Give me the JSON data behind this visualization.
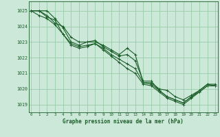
{
  "background_color": "#cce8d8",
  "plot_bg_color": "#cce8d8",
  "grid_color": "#99ccaa",
  "line_color": "#1a5c28",
  "marker_color": "#1a5c28",
  "xlabel": "Graphe pression niveau de la mer (hPa)",
  "ylim": [
    1018.5,
    1025.6
  ],
  "xlim": [
    -0.3,
    23.3
  ],
  "yticks": [
    1019,
    1020,
    1021,
    1022,
    1023,
    1024,
    1025
  ],
  "xticks": [
    0,
    1,
    2,
    3,
    4,
    5,
    6,
    7,
    8,
    9,
    10,
    11,
    12,
    13,
    14,
    15,
    16,
    17,
    18,
    19,
    20,
    21,
    22,
    23
  ],
  "series": [
    [
      1025.0,
      1025.0,
      1025.0,
      1024.5,
      1023.9,
      1023.0,
      1022.8,
      1023.0,
      1023.0,
      1022.8,
      1022.5,
      1022.2,
      1022.6,
      1022.2,
      1020.4,
      1020.4,
      1020.0,
      1019.9,
      1019.5,
      1019.3,
      1019.6,
      1019.9,
      1020.3,
      1020.3
    ],
    [
      1025.0,
      1025.0,
      1024.7,
      1024.2,
      1024.0,
      1023.3,
      1023.0,
      1023.0,
      1023.1,
      1022.7,
      1022.4,
      1022.1,
      1022.2,
      1021.8,
      1020.5,
      1020.5,
      1019.9,
      1019.5,
      1019.3,
      1019.1,
      1019.5,
      1019.9,
      1020.3,
      1020.2
    ],
    [
      1025.0,
      1025.0,
      1024.6,
      1024.4,
      1023.5,
      1022.9,
      1022.7,
      1022.8,
      1022.9,
      1022.6,
      1022.2,
      1021.9,
      1021.6,
      1021.3,
      1020.4,
      1020.3,
      1019.9,
      1019.5,
      1019.3,
      1019.1,
      1019.5,
      1019.8,
      1020.2,
      1020.2
    ],
    [
      1025.0,
      1024.7,
      1024.5,
      1024.1,
      1023.5,
      1022.8,
      1022.6,
      1022.7,
      1022.9,
      1022.5,
      1022.1,
      1021.7,
      1021.3,
      1021.0,
      1020.3,
      1020.2,
      1019.8,
      1019.4,
      1019.2,
      1019.0,
      1019.4,
      1019.8,
      1020.2,
      1020.2
    ]
  ]
}
